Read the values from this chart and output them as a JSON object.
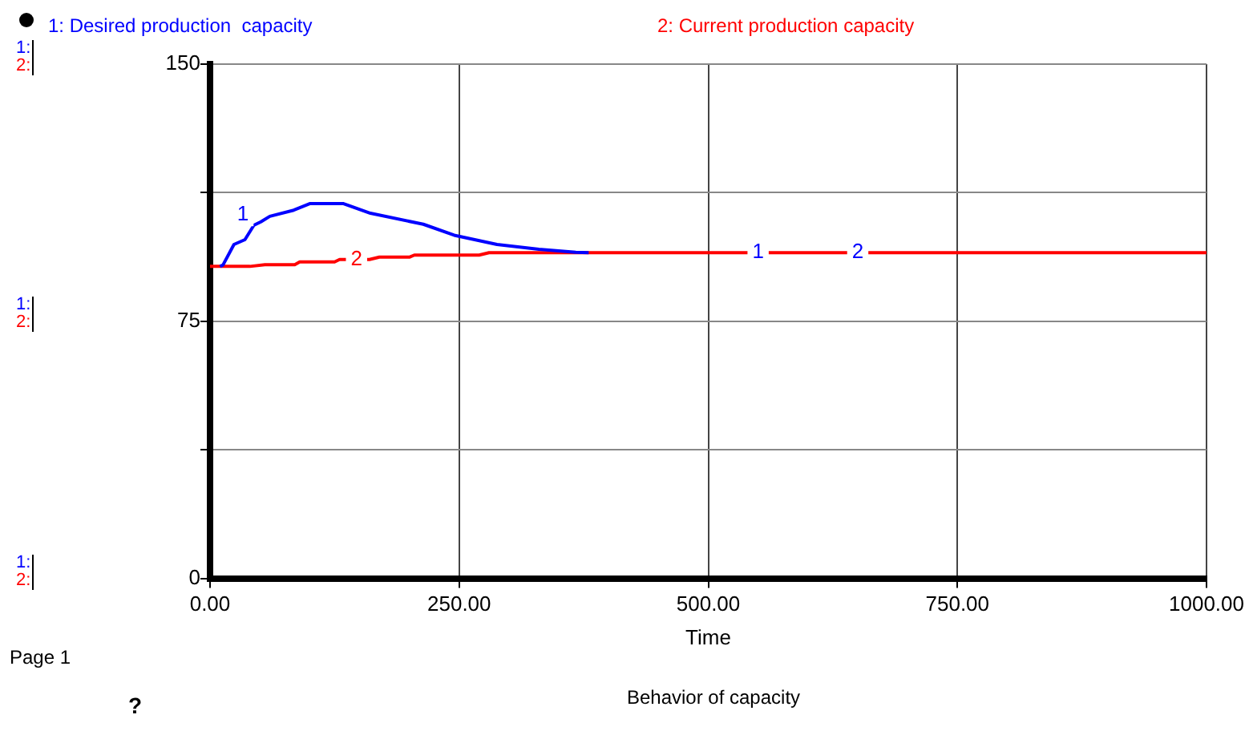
{
  "chart_data": {
    "type": "line",
    "title": "Behavior of capacity",
    "xlabel": "Time",
    "xlim": [
      0,
      1000
    ],
    "xticks": [
      {
        "value": 0,
        "label": "0.00"
      },
      {
        "value": 250,
        "label": "250.00"
      },
      {
        "value": 500,
        "label": "500.00"
      },
      {
        "value": 750,
        "label": "750.00"
      },
      {
        "value": 1000,
        "label": "1000.00"
      }
    ],
    "ylim": [
      0,
      150
    ],
    "yticks": [
      0,
      {
        "value": 37.5,
        "label": null
      },
      75,
      {
        "value": 112.5,
        "label": null
      },
      150
    ],
    "grid": true,
    "legend": "top",
    "marker": "none",
    "line_style": "solid",
    "series": [
      {
        "name": "1: Desired production  capacity",
        "color": "#0000ff",
        "x": [
          10,
          13,
          24,
          35,
          44,
          51,
          60,
          84,
          100,
          134,
          161,
          214,
          245,
          288,
          330,
          367,
          380
        ],
        "values": [
          91,
          91.4,
          97.4,
          98.8,
          103,
          104,
          105.6,
          107.4,
          109.3,
          109.3,
          106.5,
          103.3,
          100.1,
          97.4,
          96,
          95.1,
          95
        ]
      },
      {
        "name": "2: Current production capacity",
        "color": "#ff0000",
        "x": [
          0,
          40,
          55,
          85,
          90,
          125,
          130,
          160,
          170,
          200,
          205,
          270,
          280,
          1000
        ],
        "values": [
          91,
          91,
          91.5,
          91.5,
          92.3,
          92.3,
          93,
          93,
          93.7,
          93.7,
          94.3,
          94.3,
          95,
          95
        ]
      }
    ],
    "annotations": [
      "1:",
      "2:",
      "1:",
      "2:",
      "1:",
      "2:",
      "Page 1",
      "?",
      {
        "text": "1",
        "x": 33,
        "y": 106
      },
      {
        "text": "2",
        "x": 147,
        "y": 93
      },
      {
        "text": "1",
        "x": 550,
        "y": 95
      },
      {
        "text": "2",
        "x": 650,
        "y": 95
      }
    ]
  }
}
